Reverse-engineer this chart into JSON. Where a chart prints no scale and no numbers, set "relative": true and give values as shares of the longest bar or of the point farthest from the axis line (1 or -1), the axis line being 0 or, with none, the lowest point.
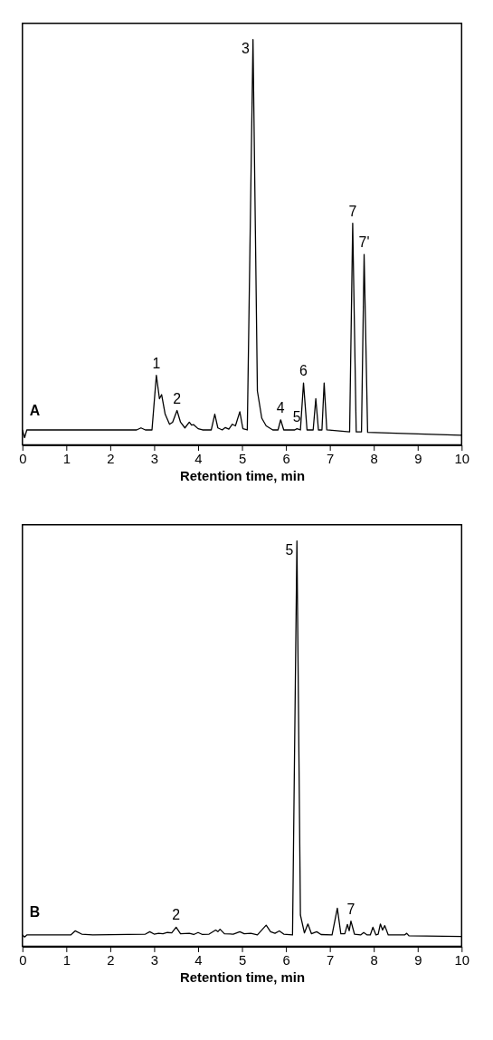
{
  "chart_data": [
    {
      "type": "line",
      "relative": true,
      "xlabel": "Retention time, min",
      "xlim": [
        0,
        10
      ],
      "xticks": [
        0,
        1,
        2,
        3,
        4,
        5,
        6,
        7,
        8,
        9,
        10
      ],
      "grid": false,
      "color": "#000000",
      "x": [
        0,
        0.05,
        0.1,
        2.6,
        2.7,
        2.8,
        2.95,
        3.05,
        3.12,
        3.17,
        3.25,
        3.35,
        3.42,
        3.52,
        3.6,
        3.7,
        3.8,
        3.85,
        3.9,
        4.0,
        4.1,
        4.3,
        4.38,
        4.45,
        4.55,
        4.62,
        4.7,
        4.78,
        4.85,
        4.95,
        5.02,
        5.12,
        5.25,
        5.35,
        5.45,
        5.55,
        5.7,
        5.82,
        5.88,
        5.95,
        6.2,
        6.25,
        6.33,
        6.4,
        6.48,
        6.62,
        6.68,
        6.74,
        6.82,
        6.87,
        6.93,
        7.45,
        7.52,
        7.6,
        7.72,
        7.78,
        7.86,
        8.5,
        10
      ],
      "values": [
        0.037,
        0.018,
        0.037,
        0.037,
        0.042,
        0.037,
        0.037,
        0.172,
        0.114,
        0.124,
        0.076,
        0.051,
        0.056,
        0.085,
        0.056,
        0.042,
        0.056,
        0.049,
        0.05,
        0.04,
        0.037,
        0.037,
        0.076,
        0.042,
        0.037,
        0.043,
        0.039,
        0.051,
        0.047,
        0.082,
        0.04,
        0.037,
        1.0,
        0.133,
        0.066,
        0.047,
        0.037,
        0.037,
        0.062,
        0.037,
        0.037,
        0.04,
        0.037,
        0.153,
        0.037,
        0.037,
        0.114,
        0.037,
        0.037,
        0.153,
        0.037,
        0.032,
        0.547,
        0.032,
        0.032,
        0.47,
        0.031,
        0.029,
        0.024
      ],
      "annotations": [
        "A",
        {
          "text": "1",
          "x": 3.05,
          "y": 0.172
        },
        {
          "text": "2",
          "x": 3.52,
          "y": 0.085
        },
        {
          "text": "3",
          "x": 5.25,
          "y": 1.0
        },
        {
          "text": "4",
          "x": 5.88,
          "y": 0.062
        },
        {
          "text": "5",
          "x": 6.25,
          "y": 0.04
        },
        {
          "text": "6",
          "x": 6.4,
          "y": 0.153
        },
        {
          "text": "7",
          "x": 7.52,
          "y": 0.547
        },
        {
          "text": "7'",
          "x": 7.78,
          "y": 0.47
        }
      ]
    },
    {
      "type": "line",
      "relative": true,
      "xlabel": "Retention time, min",
      "xlim": [
        0,
        10
      ],
      "xticks": [
        0,
        1,
        2,
        3,
        4,
        5,
        6,
        7,
        8,
        9,
        10
      ],
      "grid": false,
      "color": "#000000",
      "x": [
        0,
        0.05,
        0.1,
        1.1,
        1.2,
        1.35,
        1.6,
        2.8,
        2.9,
        3.0,
        3.1,
        3.2,
        3.3,
        3.4,
        3.5,
        3.6,
        3.8,
        3.9,
        4.0,
        4.1,
        4.25,
        4.4,
        4.45,
        4.5,
        4.6,
        4.8,
        4.95,
        5.05,
        5.2,
        5.35,
        5.55,
        5.65,
        5.75,
        5.85,
        5.95,
        6.15,
        6.25,
        6.33,
        6.42,
        6.5,
        6.58,
        6.7,
        6.8,
        7.05,
        7.17,
        7.25,
        7.34,
        7.4,
        7.44,
        7.48,
        7.56,
        7.7,
        7.77,
        7.85,
        7.92,
        7.98,
        8.05,
        8.1,
        8.15,
        8.2,
        8.25,
        8.33,
        8.7,
        8.75,
        8.8,
        10
      ],
      "values": [
        0.028,
        0.023,
        0.028,
        0.028,
        0.038,
        0.03,
        0.028,
        0.03,
        0.036,
        0.03,
        0.032,
        0.031,
        0.034,
        0.033,
        0.047,
        0.031,
        0.032,
        0.029,
        0.034,
        0.029,
        0.03,
        0.04,
        0.036,
        0.042,
        0.031,
        0.03,
        0.036,
        0.031,
        0.032,
        0.028,
        0.052,
        0.036,
        0.032,
        0.038,
        0.03,
        0.028,
        1.0,
        0.077,
        0.033,
        0.055,
        0.031,
        0.036,
        0.029,
        0.028,
        0.094,
        0.031,
        0.031,
        0.054,
        0.038,
        0.062,
        0.03,
        0.028,
        0.034,
        0.028,
        0.028,
        0.047,
        0.028,
        0.03,
        0.055,
        0.04,
        0.051,
        0.028,
        0.028,
        0.032,
        0.026,
        0.024
      ],
      "annotations": [
        "B",
        {
          "text": "2",
          "x": 3.5,
          "y": 0.047
        },
        {
          "text": "5",
          "x": 6.25,
          "y": 1.0
        },
        {
          "text": "7",
          "x": 7.48,
          "y": 0.062
        }
      ]
    }
  ]
}
